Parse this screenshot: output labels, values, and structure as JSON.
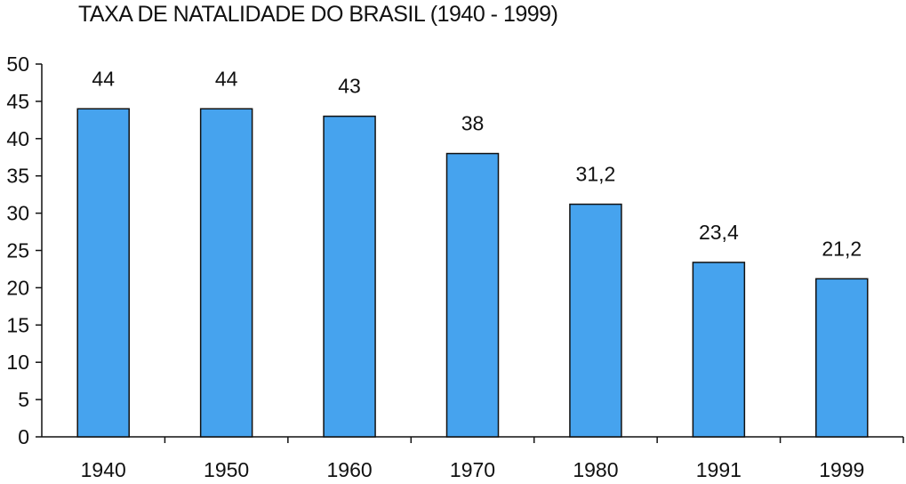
{
  "chart_data": {
    "type": "bar",
    "title": "TAXA DE NATALIDADE DO BRASIL (1940 - 1999)",
    "xlabel": "",
    "ylabel": "",
    "categories": [
      "1940",
      "1950",
      "1960",
      "1970",
      "1980",
      "1991",
      "1999"
    ],
    "values": [
      44,
      44,
      43,
      38,
      31.2,
      23.4,
      21.2
    ],
    "data_labels": [
      "44",
      "44",
      "43",
      "38",
      "31,2",
      "23,4",
      "21,2"
    ],
    "ylim": [
      0,
      50
    ],
    "yticks": [
      0,
      5,
      10,
      15,
      20,
      25,
      30,
      35,
      40,
      45,
      50
    ],
    "grid": false,
    "legend": "none",
    "bar_color": "#46a3ee",
    "bar_edge_color": "#111111"
  }
}
